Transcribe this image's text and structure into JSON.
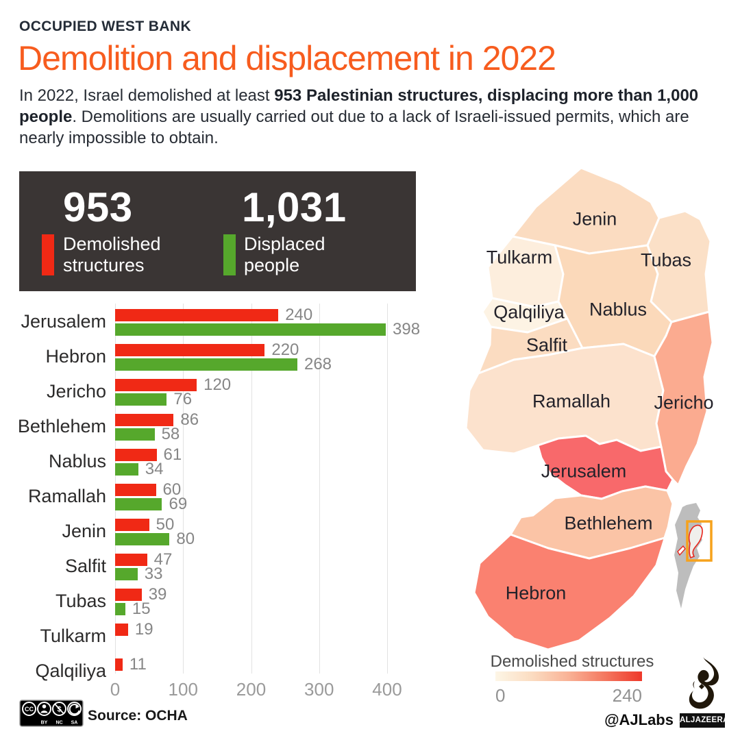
{
  "header": {
    "kicker": "OCCUPIED WEST BANK",
    "title": "Demolition and displacement in 2022"
  },
  "intro": {
    "pre": "In 2022, Israel demolished at least ",
    "bold": "953 Palestinian structures, displacing more than 1,000 people",
    "post": ". Demolitions are usually carried out due to a lack of Israeli-issued permits, which are nearly impossible to obtain."
  },
  "stats": [
    {
      "value": "953",
      "label": "Demolished structures",
      "color": "#f02915"
    },
    {
      "value": "1,031",
      "label": "Displaced people",
      "color": "#56a82c"
    }
  ],
  "chart_data": {
    "type": "bar",
    "orientation": "horizontal",
    "categories": [
      "Jerusalem",
      "Hebron",
      "Jericho",
      "Bethlehem",
      "Nablus",
      "Ramallah",
      "Jenin",
      "Salfit",
      "Tubas",
      "Tulkarm",
      "Qalqiliya"
    ],
    "series": [
      {
        "name": "Demolished structures",
        "color": "#f02915",
        "values": [
          240,
          220,
          120,
          86,
          61,
          60,
          50,
          47,
          39,
          19,
          11
        ]
      },
      {
        "name": "Displaced people",
        "color": "#56a82c",
        "values": [
          398,
          268,
          76,
          58,
          34,
          69,
          80,
          33,
          15,
          null,
          null
        ]
      }
    ],
    "xlim": [
      0,
      400
    ],
    "xticks": [
      0,
      100,
      200,
      300,
      400
    ],
    "grid": "vertical"
  },
  "map": {
    "regions": [
      {
        "id": "jenin",
        "name": "Jenin",
        "value": 50,
        "color": "#fbdcc1",
        "label": [
          218,
          80
        ]
      },
      {
        "id": "tulkarm",
        "name": "Tulkarm",
        "value": 19,
        "color": "#fdeedd",
        "label": [
          108,
          136
        ]
      },
      {
        "id": "tubas",
        "name": "Tubas",
        "value": 39,
        "color": "#fbe0c7",
        "label": [
          322,
          140
        ]
      },
      {
        "id": "qalqiliya",
        "name": "Qalqiliya",
        "value": 11,
        "color": "#fdf3e4",
        "label": [
          122,
          216
        ]
      },
      {
        "id": "nablus",
        "name": "Nablus",
        "value": 61,
        "color": "#fbd9ba",
        "label": [
          252,
          212
        ]
      },
      {
        "id": "salfit",
        "name": "Salfit",
        "value": 47,
        "color": "#fbdcc1",
        "label": [
          148,
          264
        ]
      },
      {
        "id": "ramallah",
        "name": "Ramallah",
        "value": 60,
        "color": "#fce2cd",
        "label": [
          184,
          346
        ]
      },
      {
        "id": "jericho",
        "name": "Jericho",
        "value": 120,
        "color": "#fbab90",
        "label": [
          348,
          348
        ]
      },
      {
        "id": "jerusalem",
        "name": "Jerusalem",
        "value": 240,
        "color": "#f8696b",
        "label": [
          202,
          448
        ]
      },
      {
        "id": "bethlehem",
        "name": "Bethlehem",
        "value": 86,
        "color": "#fbc4a6",
        "label": [
          238,
          524
        ]
      },
      {
        "id": "hebron",
        "name": "Hebron",
        "value": 220,
        "color": "#fa8170",
        "label": [
          132,
          626
        ]
      }
    ],
    "legend": {
      "title": "Demolished structures",
      "min": "0",
      "max": "240",
      "gradient": [
        "#fdf6e6",
        "#fbdcc1",
        "#f9b296",
        "#f4775f",
        "#ee382a"
      ]
    }
  },
  "footer": {
    "source": "Source: OCHA",
    "credit": "@AJLabs",
    "brand": "ALJAZEERA",
    "cc_labels": [
      "BY",
      "NC",
      "SA"
    ]
  }
}
